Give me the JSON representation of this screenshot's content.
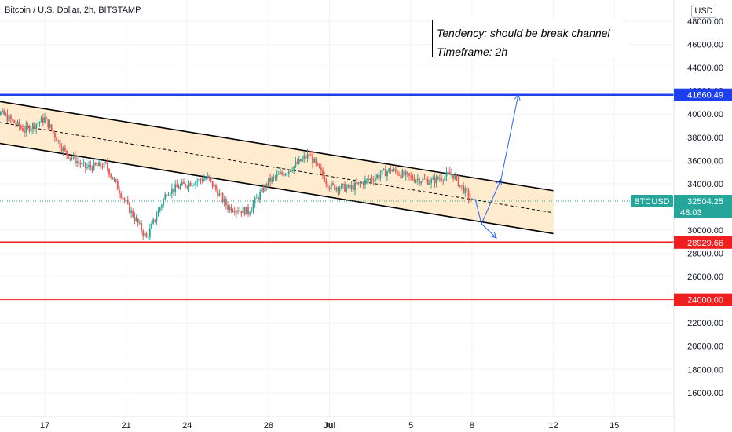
{
  "header": {
    "title": "Bitcoin / U.S. Dollar, 2h, BITSTAMP"
  },
  "annotation": {
    "line1": "Tendency: should be break channel",
    "line2": "Timeframe: 2h"
  },
  "currency_badge": "USD",
  "colors": {
    "up": "#26a69a",
    "down": "#ef5350",
    "resistance": "#1e3ff0",
    "support": "#f01e1e",
    "channel_fill": "#ffe7c4",
    "projection": "#2962ff",
    "price_tag": "#26a69a"
  },
  "chart_data": {
    "type": "candlestick",
    "title": "Bitcoin / U.S. Dollar, 2h, BITSTAMP",
    "ylim": [
      14500,
      48500
    ],
    "y_ticks": [
      "16000.00",
      "18000.00",
      "20000.00",
      "22000.00",
      "24000.00",
      "26000.00",
      "28000.00",
      "30000.00",
      "32000.00",
      "34000.00",
      "36000.00",
      "38000.00",
      "40000.00",
      "42000.00",
      "44000.00",
      "46000.00",
      "48000.00"
    ],
    "x_ticks": [
      "17",
      "21",
      "24",
      "28",
      "Jul",
      "5",
      "8",
      "12",
      "15"
    ],
    "horizontal_levels": [
      {
        "value": 41660.49,
        "label": "41660.49",
        "color": "#1e3ff0"
      },
      {
        "value": 28929.66,
        "label": "28929.66",
        "color": "#f01e1e"
      },
      {
        "value": 24000.0,
        "label": "24000.00",
        "color": "#f01e1e"
      }
    ],
    "last_price": {
      "symbol": "BTCUSD",
      "value": "32504.25",
      "countdown": "48:03"
    },
    "channel": {
      "upper": [
        [
          "Jun 14",
          41300
        ],
        [
          "Jul 12",
          33400
        ]
      ],
      "lower": [
        [
          "Jun 14",
          37700
        ],
        [
          "Jul 12",
          29700
        ]
      ],
      "mid": [
        [
          "Jun 14",
          39500
        ],
        [
          "Jul 12",
          31500
        ]
      ]
    },
    "price_path": [
      [
        "Jun 14",
        40800
      ],
      [
        "Jun 15",
        39900
      ],
      [
        "Jun 16",
        38600
      ],
      [
        "Jun 17",
        39600
      ],
      [
        "Jun 18",
        36700
      ],
      [
        "Jun 19",
        35400
      ],
      [
        "Jun 20",
        35600
      ],
      [
        "Jun 21",
        32300
      ],
      [
        "Jun 22",
        29300
      ],
      [
        "Jun 23",
        33300
      ],
      [
        "Jun 24",
        34000
      ],
      [
        "Jun 25",
        34500
      ],
      [
        "Jun 26",
        32000
      ],
      [
        "Jun 27",
        31600
      ],
      [
        "Jun 28",
        34200
      ],
      [
        "Jun 29",
        35200
      ],
      [
        "Jun 30",
        36500
      ],
      [
        "Jul 1",
        33800
      ],
      [
        "Jul 2",
        33600
      ],
      [
        "Jul 3",
        34400
      ],
      [
        "Jul 4",
        35200
      ],
      [
        "Jul 5",
        34500
      ],
      [
        "Jul 6",
        34200
      ],
      [
        "Jul 7",
        34900
      ],
      [
        "Jul 8",
        32500
      ]
    ]
  }
}
